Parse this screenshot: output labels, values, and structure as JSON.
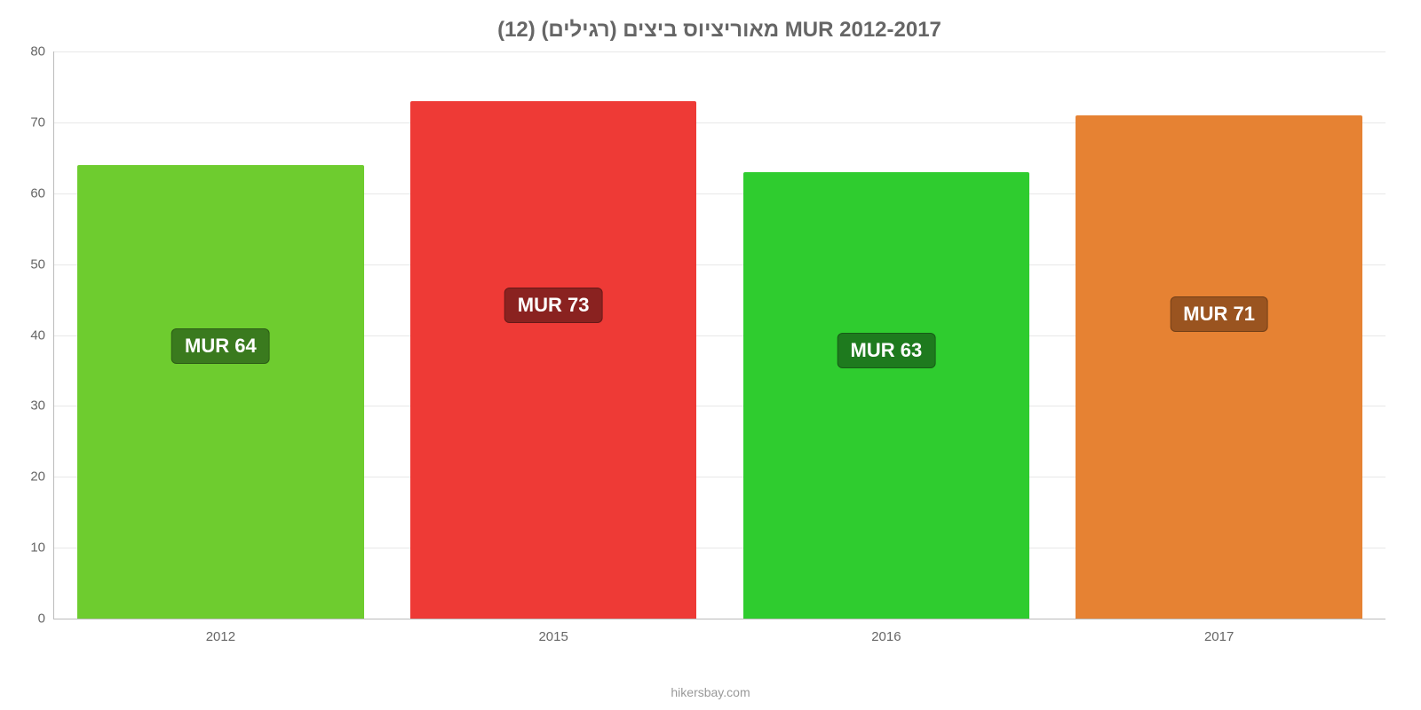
{
  "chart": {
    "type": "bar",
    "title": "מאוריציוס ביצים (רגילים) (12) MUR 2012-2017",
    "title_fontsize": 24,
    "title_color": "#666666",
    "background_color": "#ffffff",
    "grid_color": "#e8e8e8",
    "axis_color": "#bbbbbb",
    "label_color": "#666666",
    "label_fontsize": 15,
    "ylim": [
      0,
      80
    ],
    "ytick_step": 10,
    "yticks": [
      0,
      10,
      20,
      30,
      40,
      50,
      60,
      70,
      80
    ],
    "bar_width": 0.86,
    "categories": [
      "2012",
      "2015",
      "2016",
      "2017"
    ],
    "values": [
      64,
      73,
      63,
      71
    ],
    "value_labels": [
      "MUR 64",
      "MUR 73",
      "MUR 63",
      "MUR 71"
    ],
    "bar_colors": [
      "#6ecc2f",
      "#ee3a36",
      "#2fcc2f",
      "#e68233"
    ],
    "badge_colors": [
      "#3a7a1e",
      "#8a2220",
      "#1e7a1e",
      "#9a5420"
    ],
    "badge_fontsize": 22,
    "credit": "hikersbay.com"
  }
}
